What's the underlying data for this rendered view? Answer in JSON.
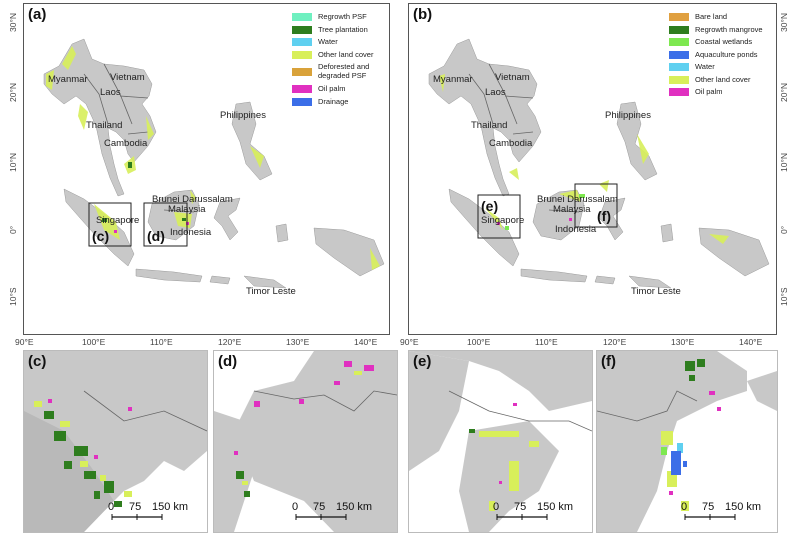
{
  "panels": {
    "a": {
      "label": "(a)"
    },
    "b": {
      "label": "(b)"
    },
    "c": {
      "label": "(c)"
    },
    "d": {
      "label": "(d)"
    },
    "e": {
      "label": "(e)"
    },
    "f": {
      "label": "(f)"
    }
  },
  "legend_a": [
    {
      "label": "Regrowth PSF",
      "color": "#6ff0c0"
    },
    {
      "label": "Tree plantation",
      "color": "#2e7d1e"
    },
    {
      "label": "Water",
      "color": "#5fd0f0"
    },
    {
      "label": "Other land cover",
      "color": "#d8ef5a"
    },
    {
      "label": "Deforested and\ndegraded PSF",
      "color": "#d9a23a"
    },
    {
      "label": "Oil palm",
      "color": "#e030c0"
    },
    {
      "label": "Drainage",
      "color": "#3b6ee8"
    }
  ],
  "legend_b": [
    {
      "label": "Bare land",
      "color": "#e0a040"
    },
    {
      "label": "Regrowth mangrove",
      "color": "#2e7d1e"
    },
    {
      "label": "Coastal wetlands",
      "color": "#7ee850"
    },
    {
      "label": "Aquaculture ponds",
      "color": "#3b6ee8"
    },
    {
      "label": "Water",
      "color": "#5fd0f0"
    },
    {
      "label": "Other land cover",
      "color": "#d8ef5a"
    },
    {
      "label": "Oil palm",
      "color": "#e030c0"
    }
  ],
  "countries": {
    "myanmar": "Myanmar",
    "vietnam": "Vietnam",
    "laos": "Laos",
    "thailand": "Thailand",
    "cambodia": "Cambodia",
    "philippines": "Philippines",
    "brunei": "Brunei Darussalam",
    "malaysia": "Malaysia",
    "singapore": "Singapore",
    "indonesia": "Indonesia",
    "timor": "Timor Leste"
  },
  "latitudes": [
    "30°N",
    "20°N",
    "10°N",
    "0°",
    "10°S"
  ],
  "longitudes": [
    "90°E",
    "100°E",
    "110°E",
    "120°E",
    "130°E",
    "140°E"
  ],
  "box_labels": {
    "c": "(c)",
    "d": "(d)",
    "e": "(e)",
    "f": "(f)"
  },
  "scale_bar": {
    "t0": "0",
    "t1": "75",
    "t2": "150 km"
  },
  "colors": {
    "land": "#c8c8c8",
    "border": "#666666"
  }
}
